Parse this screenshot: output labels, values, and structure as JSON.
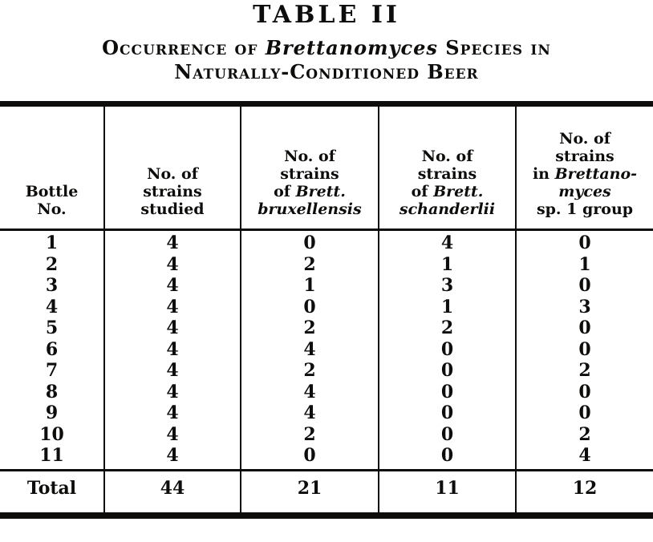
{
  "title": "TABLE II",
  "subtitle": {
    "line1_prefix": "Occurrence of ",
    "species": "Brettanomyces",
    "line1_suffix": " Species in",
    "line2": "Naturally-Conditioned Beer"
  },
  "table": {
    "columns": [
      {
        "id": "bottle-no",
        "lines": [
          [
            {
              "t": "Bottle"
            }
          ],
          [
            {
              "t": "No."
            }
          ]
        ]
      },
      {
        "id": "strains-studied",
        "lines": [
          [
            {
              "t": "No. of"
            }
          ],
          [
            {
              "t": "strains"
            }
          ],
          [
            {
              "t": "studied"
            }
          ]
        ]
      },
      {
        "id": "strains-brett-bruxellensis",
        "lines": [
          [
            {
              "t": "No. of"
            }
          ],
          [
            {
              "t": "strains"
            }
          ],
          [
            {
              "t": "of "
            },
            {
              "t": "Brett.",
              "i": true
            }
          ],
          [
            {
              "t": "bruxellensis",
              "i": true
            }
          ]
        ]
      },
      {
        "id": "strains-brett-schanderlii",
        "lines": [
          [
            {
              "t": "No. of"
            }
          ],
          [
            {
              "t": "strains"
            }
          ],
          [
            {
              "t": "of "
            },
            {
              "t": "Brett.",
              "i": true
            }
          ],
          [
            {
              "t": "schanderlii",
              "i": true
            }
          ]
        ]
      },
      {
        "id": "strains-brettanomyces-sp1-group",
        "lines": [
          [
            {
              "t": "No. of"
            }
          ],
          [
            {
              "t": "strains"
            }
          ],
          [
            {
              "t": "in "
            },
            {
              "t": "Brettano-",
              "i": true
            }
          ],
          [
            {
              "t": "myces",
              "i": true
            }
          ],
          [
            {
              "t": "sp. 1 group"
            }
          ]
        ]
      }
    ],
    "rows": [
      [
        "1",
        "4",
        "0",
        "4",
        "0"
      ],
      [
        "2",
        "4",
        "2",
        "1",
        "1"
      ],
      [
        "3",
        "4",
        "1",
        "3",
        "0"
      ],
      [
        "4",
        "4",
        "0",
        "1",
        "3"
      ],
      [
        "5",
        "4",
        "2",
        "2",
        "0"
      ],
      [
        "6",
        "4",
        "4",
        "0",
        "0"
      ],
      [
        "7",
        "4",
        "2",
        "0",
        "2"
      ],
      [
        "8",
        "4",
        "4",
        "0",
        "0"
      ],
      [
        "9",
        "4",
        "4",
        "0",
        "0"
      ],
      [
        "10",
        "4",
        "2",
        "0",
        "2"
      ],
      [
        "11",
        "4",
        "0",
        "0",
        "4"
      ]
    ],
    "total_row": [
      "Total",
      "44",
      "21",
      "11",
      "12"
    ]
  },
  "colors": {
    "ink": "#0e0d0b",
    "paper": "#ffffff"
  }
}
